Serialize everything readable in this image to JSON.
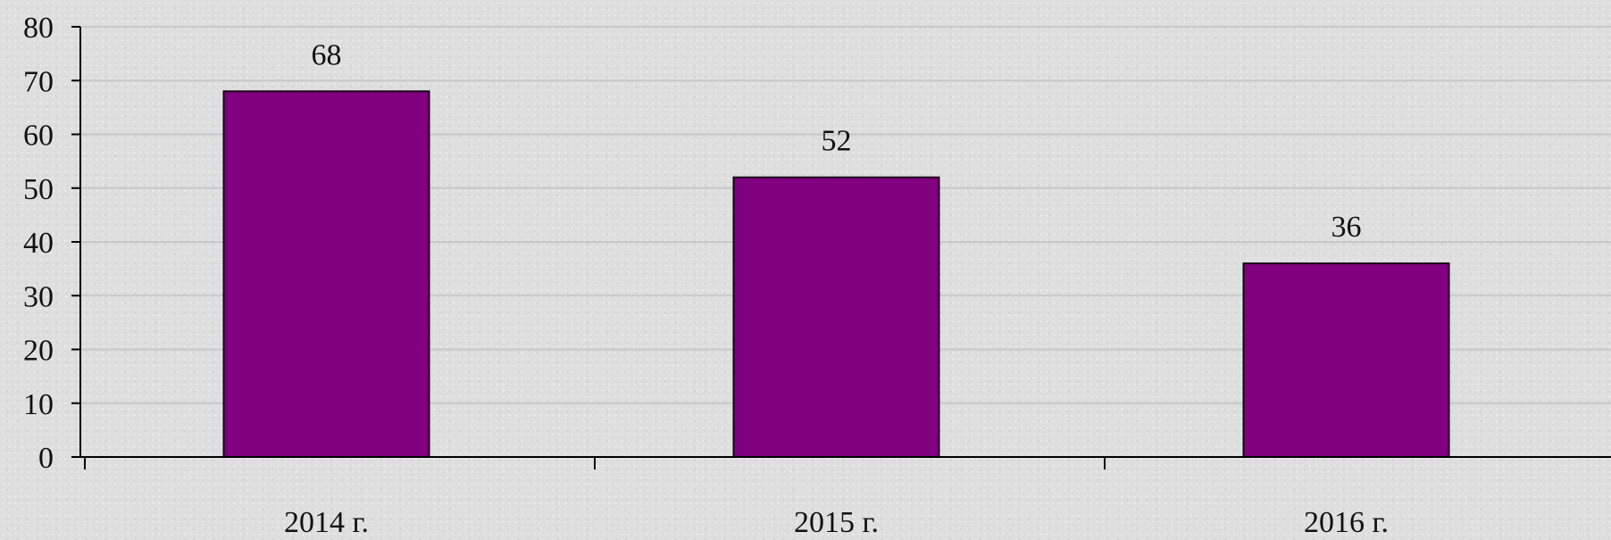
{
  "chart_data": {
    "type": "bar",
    "categories": [
      "2014 г.",
      "2015 г.",
      "2016 г."
    ],
    "values": [
      68,
      52,
      36
    ],
    "data_labels": [
      "68",
      "52",
      "36"
    ],
    "ylim": [
      0,
      80
    ],
    "yticks": [
      0,
      10,
      20,
      30,
      40,
      50,
      60,
      70,
      80
    ],
    "ytick_labels": [
      "0",
      "10",
      "20",
      "30",
      "40",
      "50",
      "60",
      "70",
      "80"
    ],
    "grid": true,
    "legend": "none",
    "bar_color": "#800080",
    "bar_edge_color": "#1a001a",
    "grid_color": "#c8c8c8",
    "axis_color": "#000000"
  }
}
